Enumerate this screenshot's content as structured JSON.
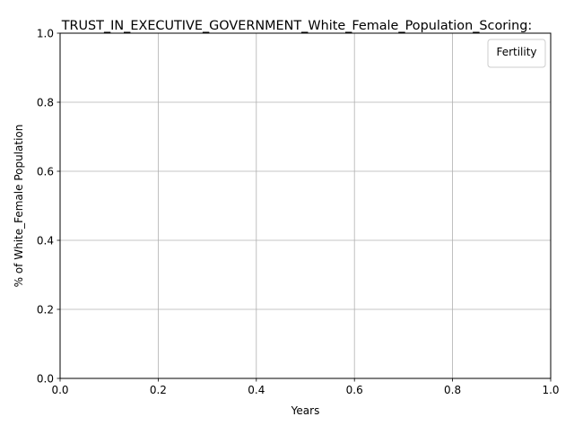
{
  "chart_data": {
    "type": "line",
    "title": "TRUST_IN_EXECUTIVE_GOVERNMENT_White_Female_Population_Scoring:",
    "xlabel": "Years",
    "ylabel": "% of White_Female Population",
    "xlim": [
      0.0,
      1.0
    ],
    "ylim": [
      0.0,
      1.0
    ],
    "x_ticks": [
      "0.0",
      "0.2",
      "0.4",
      "0.6",
      "0.8",
      "1.0"
    ],
    "y_ticks": [
      "0.0",
      "0.2",
      "0.4",
      "0.6",
      "0.8",
      "1.0"
    ],
    "grid": true,
    "legend": {
      "title": "Fertility",
      "placement": "top-right",
      "entries": []
    },
    "series": []
  }
}
